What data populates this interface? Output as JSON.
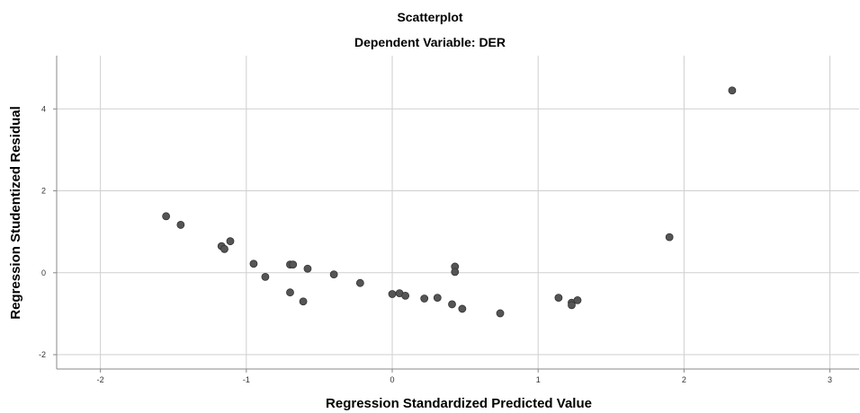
{
  "chart_data": {
    "type": "scatter",
    "title": "Scatterplot",
    "subtitle": "Dependent Variable: DER",
    "xlabel": "Regression Standardized Predicted Value",
    "ylabel": "Regression Studentized Residual",
    "xlim": [
      -2.3,
      3.2
    ],
    "ylim": [
      -2.35,
      5.3
    ],
    "xticks": [
      -2,
      -1,
      0,
      1,
      2,
      3
    ],
    "yticks": [
      -2,
      0,
      2,
      4
    ],
    "grid": true,
    "colors": {
      "point": "#555555",
      "grid": "#cfcfcf",
      "axis": "#888888"
    },
    "points": [
      {
        "x": -1.55,
        "y": 1.38
      },
      {
        "x": -1.45,
        "y": 1.17
      },
      {
        "x": -1.17,
        "y": 0.65
      },
      {
        "x": -1.15,
        "y": 0.58
      },
      {
        "x": -1.11,
        "y": 0.77
      },
      {
        "x": -0.95,
        "y": 0.22
      },
      {
        "x": -0.87,
        "y": -0.1
      },
      {
        "x": -0.7,
        "y": 0.2
      },
      {
        "x": -0.68,
        "y": 0.2
      },
      {
        "x": -0.7,
        "y": -0.48
      },
      {
        "x": -0.61,
        "y": -0.7
      },
      {
        "x": -0.58,
        "y": 0.1
      },
      {
        "x": -0.4,
        "y": -0.04
      },
      {
        "x": -0.22,
        "y": -0.25
      },
      {
        "x": 0.0,
        "y": -0.52
      },
      {
        "x": 0.05,
        "y": -0.5
      },
      {
        "x": 0.09,
        "y": -0.56
      },
      {
        "x": 0.22,
        "y": -0.63
      },
      {
        "x": 0.31,
        "y": -0.61
      },
      {
        "x": 0.41,
        "y": -0.77
      },
      {
        "x": 0.43,
        "y": 0.15
      },
      {
        "x": 0.43,
        "y": 0.02
      },
      {
        "x": 0.48,
        "y": -0.88
      },
      {
        "x": 0.74,
        "y": -0.99
      },
      {
        "x": 1.14,
        "y": -0.61
      },
      {
        "x": 1.23,
        "y": -0.73
      },
      {
        "x": 1.23,
        "y": -0.79
      },
      {
        "x": 1.27,
        "y": -0.67
      },
      {
        "x": 1.9,
        "y": 0.87
      },
      {
        "x": 2.33,
        "y": 4.45
      }
    ]
  }
}
